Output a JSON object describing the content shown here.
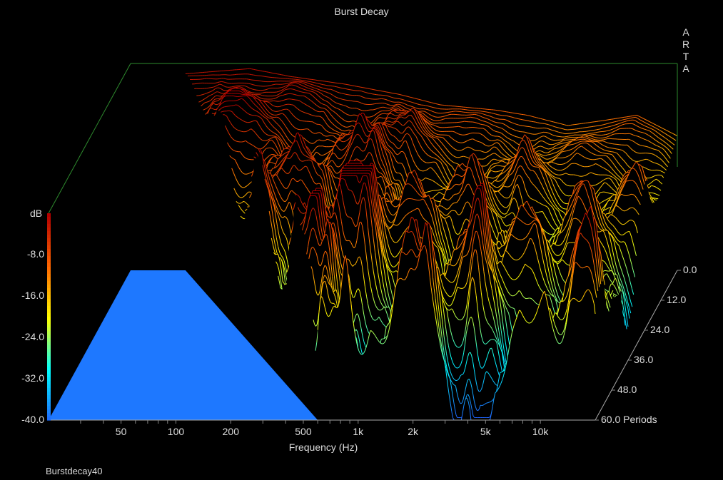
{
  "title": "Burst Decay",
  "brand": [
    "A",
    "R",
    "T",
    "A"
  ],
  "footer": "Burstdecay40",
  "chart_data": {
    "type": "waterfall-3d",
    "title": "Burst Decay",
    "xlabel": "Frequency (Hz)",
    "x_scale": "log",
    "xlim": [
      20,
      20000
    ],
    "x_ticks": [
      {
        "v": 50,
        "label": "50"
      },
      {
        "v": 100,
        "label": "100"
      },
      {
        "v": 200,
        "label": "200"
      },
      {
        "v": 500,
        "label": "500"
      },
      {
        "v": 1000,
        "label": "1k"
      },
      {
        "v": 2000,
        "label": "2k"
      },
      {
        "v": 5000,
        "label": "5k"
      },
      {
        "v": 10000,
        "label": "10k"
      }
    ],
    "ylabel": "dB",
    "ylim": [
      -40,
      0
    ],
    "y_ticks": [
      {
        "v": -8,
        "label": "-8.0"
      },
      {
        "v": -16,
        "label": "-16.0"
      },
      {
        "v": -24,
        "label": "-24.0"
      },
      {
        "v": -32,
        "label": "-32.0"
      },
      {
        "v": -40,
        "label": "-40.0"
      }
    ],
    "zlabel": "Periods",
    "zlim": [
      0,
      60
    ],
    "z_ticks": [
      {
        "v": 0,
        "label": "0.0"
      },
      {
        "v": 12,
        "label": "12.0"
      },
      {
        "v": 24,
        "label": "24.0"
      },
      {
        "v": 36,
        "label": "36.0"
      },
      {
        "v": 48,
        "label": "48.0"
      },
      {
        "v": 60,
        "label": "60.0 Periods"
      }
    ],
    "colormap": [
      "#1e64ff",
      "#00ffff",
      "#ffff00",
      "#ff6600",
      "#b40000"
    ],
    "axis_color": "#2e8b2e",
    "floor_color": "#1e78ff",
    "onset_frequency_at_first_period_hz": 40,
    "onset_frequency_at_last_period_hz": 600,
    "periods_count": 60,
    "initial_response_db": [
      {
        "f": 40,
        "db": -2
      },
      {
        "f": 60,
        "db": -1.5
      },
      {
        "f": 90,
        "db": -1
      },
      {
        "f": 150,
        "db": -2.5
      },
      {
        "f": 300,
        "db": -4
      },
      {
        "f": 600,
        "db": -6
      },
      {
        "f": 1000,
        "db": -8
      },
      {
        "f": 2000,
        "db": -9
      },
      {
        "f": 3000,
        "db": -10
      },
      {
        "f": 5000,
        "db": -12
      },
      {
        "f": 8000,
        "db": -11
      },
      {
        "f": 12000,
        "db": -10
      },
      {
        "f": 20000,
        "db": -14
      }
    ]
  }
}
